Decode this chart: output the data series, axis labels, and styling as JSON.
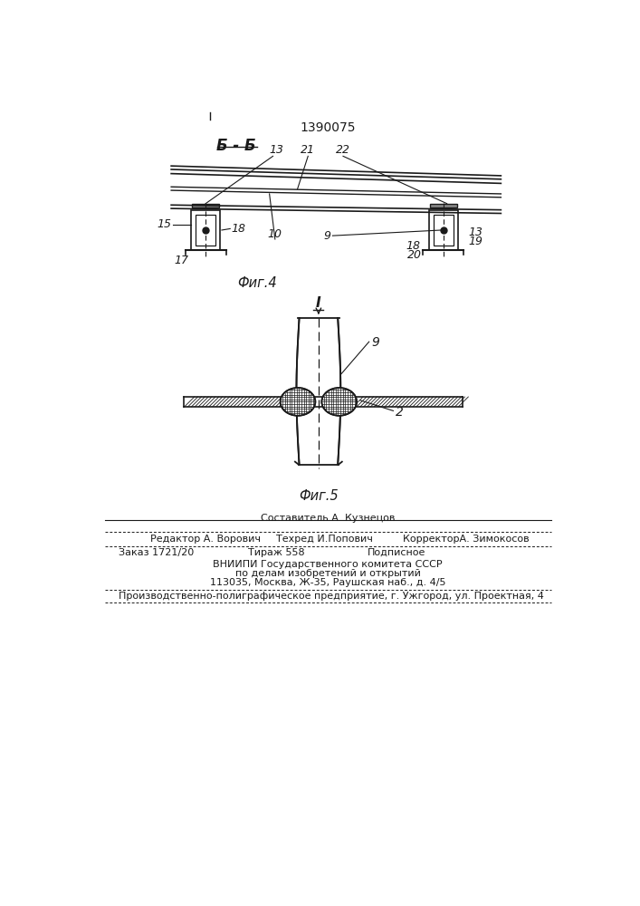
{
  "patent_number": "1390075",
  "section_label": "Б - Б",
  "fig4_label": "Фиг.4",
  "fig5_label": "Фиг.5",
  "line_color": "#1a1a1a",
  "footer_line1": "Составитель А. Кузнецов",
  "footer_line2a": "Редактор А. Ворович",
  "footer_line2b": "Техред И.Попович",
  "footer_line2c": "КорректорА. Зимокосов",
  "footer_line3a": "Заказ 1721/20",
  "footer_line3b": "Тираж 558",
  "footer_line3c": "Подписное",
  "footer_line4": "ВНИИПИ Государственного комитета СССР",
  "footer_line5": "по делам изобретений и открытий",
  "footer_line6": "113035, Москва, Ж-35, Раушская наб., д. 4/5",
  "footer_line7": "Производственно-полиграфическое предприятие, г. Ужгород, ул. Проектная, 4"
}
